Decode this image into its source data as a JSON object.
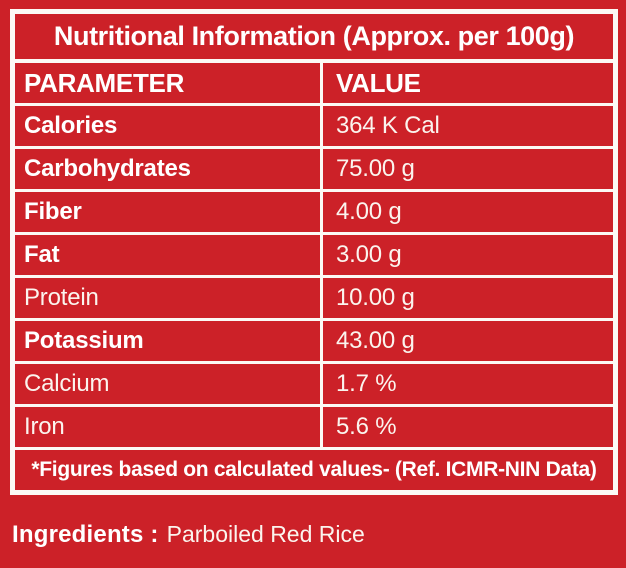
{
  "colors": {
    "background": "#CC2128",
    "cell_background": "#CC2128",
    "line_white": "#FCF9F5",
    "text_bold": "#FFFFFF",
    "text_regular": "#FBF4EE"
  },
  "title": "Nutritional Information (Approx. per 100g)",
  "table": {
    "headers": [
      "PARAMETER",
      "VALUE"
    ],
    "rows": [
      {
        "parameter": "Calories",
        "value": "364 K Cal",
        "bold": true
      },
      {
        "parameter": "Carbohydrates",
        "value": "75.00 g",
        "bold": true
      },
      {
        "parameter": "Fiber",
        "value": "4.00 g",
        "bold": true
      },
      {
        "parameter": "Fat",
        "value": "3.00 g",
        "bold": true
      },
      {
        "parameter": "Protein",
        "value": "10.00 g",
        "bold": false
      },
      {
        "parameter": "Potassium",
        "value": "43.00 g",
        "bold": true
      },
      {
        "parameter": "Calcium",
        "value": "1.7 %",
        "bold": false
      },
      {
        "parameter": "Iron",
        "value": "5.6 %",
        "bold": false
      }
    ],
    "footnote": "*Figures based on calculated values- (Ref. ICMR-NIN Data)"
  },
  "ingredients": {
    "label": "Ingredients :",
    "value": "Parboiled Red Rice"
  }
}
